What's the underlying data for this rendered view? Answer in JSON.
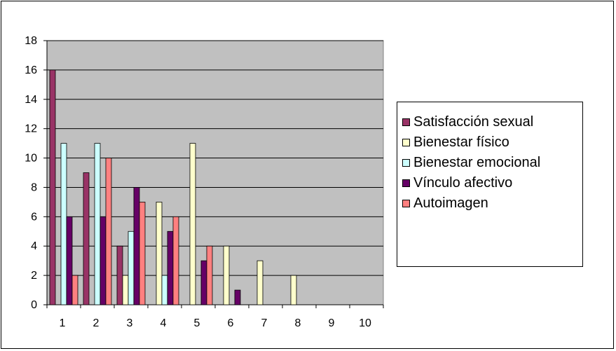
{
  "chart_data": {
    "type": "bar",
    "title": "",
    "xlabel": "",
    "ylabel": "",
    "ylim": [
      0,
      18
    ],
    "yticks": [
      0,
      2,
      4,
      6,
      8,
      10,
      12,
      14,
      16,
      18
    ],
    "grid": true,
    "legend_position": "right",
    "categories": [
      "1",
      "2",
      "3",
      "4",
      "5",
      "6",
      "7",
      "8",
      "9",
      "10"
    ],
    "series": [
      {
        "name": "Satisfacción sexual",
        "color": "#993366",
        "values": [
          16,
          9,
          4,
          0,
          0,
          0,
          0,
          0,
          0,
          0
        ]
      },
      {
        "name": "Bienestar físico",
        "color": "#FFFFCC",
        "values": [
          0,
          0,
          2,
          7,
          11,
          4,
          3,
          2,
          0,
          0
        ]
      },
      {
        "name": "Bienestar emocional",
        "color": "#CCFFFF",
        "values": [
          11,
          11,
          5,
          2,
          0,
          0,
          0,
          0,
          0,
          0
        ]
      },
      {
        "name": "Vínculo afectivo",
        "color": "#660066",
        "values": [
          6,
          6,
          8,
          5,
          3,
          1,
          0,
          0,
          0,
          0
        ]
      },
      {
        "name": "Autoimagen",
        "color": "#FF8080",
        "values": [
          2,
          10,
          7,
          6,
          4,
          0,
          0,
          0,
          0,
          0
        ]
      }
    ],
    "plot_background": "#C0C0C0"
  }
}
